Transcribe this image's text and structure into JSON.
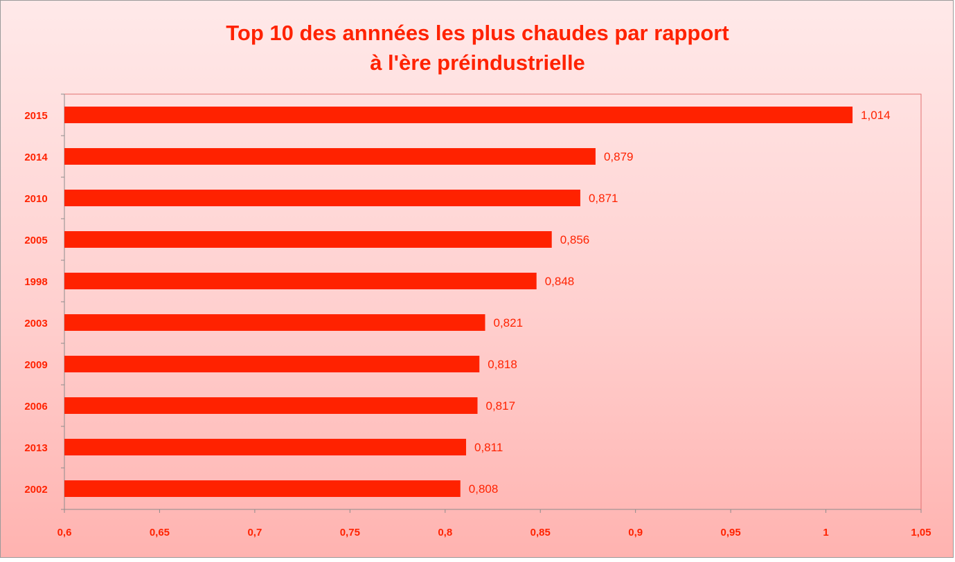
{
  "chart_data": {
    "type": "bar",
    "orientation": "horizontal",
    "title": [
      "Top 10 des annnées les plus chaudes par rapport",
      "à l'ère préindustrielle"
    ],
    "categories": [
      "2015",
      "2014",
      "2010",
      "2005",
      "1998",
      "2003",
      "2009",
      "2006",
      "2013",
      "2002"
    ],
    "values": [
      1.014,
      0.879,
      0.871,
      0.856,
      0.848,
      0.821,
      0.818,
      0.817,
      0.811,
      0.808
    ],
    "value_labels": [
      "1,014",
      "0,879",
      "0,871",
      "0,856",
      "0,848",
      "0,821",
      "0,818",
      "0,817",
      "0,811",
      "0,808"
    ],
    "xlim": [
      0.6,
      1.05
    ],
    "x_ticks": [
      0.6,
      0.65,
      0.7,
      0.75,
      0.8,
      0.85,
      0.9,
      0.95,
      1.0,
      1.05
    ],
    "x_tick_labels": [
      "0,6",
      "0,65",
      "0,7",
      "0,75",
      "0,8",
      "0,85",
      "0,9",
      "0,95",
      "1",
      "1,05"
    ],
    "xlabel": "",
    "ylabel": "",
    "grid": false,
    "legend": "none",
    "colors": {
      "bar": "#ff2200",
      "text": "#ff2200",
      "axis": "#8c8c8c",
      "plot_border": "#e07070"
    }
  }
}
